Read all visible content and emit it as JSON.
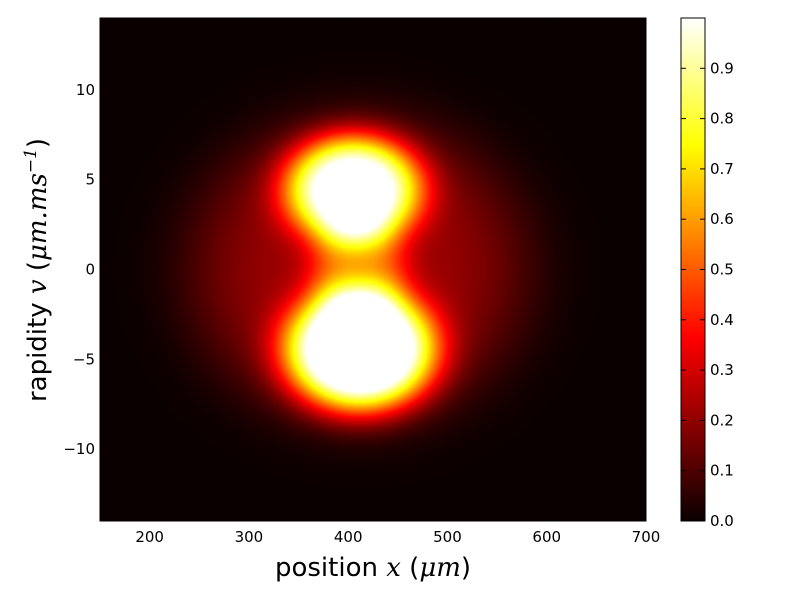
{
  "chart_data": {
    "type": "heatmap",
    "title": "",
    "xlabel": {
      "prefix": "position ",
      "var": "x",
      "unit_open": " (",
      "unit": "μm",
      "unit_close": ")"
    },
    "ylabel": {
      "prefix": "rapidity ",
      "var": "v",
      "unit_open": " (",
      "unit": "μm.ms",
      "exponent": "−1",
      "unit_close": ")"
    },
    "xlim": [
      150,
      700
    ],
    "ylim": [
      -14,
      14
    ],
    "x_ticks": [
      200,
      300,
      400,
      500,
      600,
      700
    ],
    "x_tick_labels": [
      "200",
      "300",
      "400",
      "500",
      "600",
      "700"
    ],
    "y_ticks": [
      -10,
      -5,
      0,
      5,
      10
    ],
    "y_tick_labels": [
      "−10",
      "−5",
      "0",
      "5",
      "10"
    ],
    "colormap": "hot",
    "colorbar": {
      "range": [
        0.0,
        1.0
      ],
      "ticks": [
        0.0,
        0.1,
        0.2,
        0.3,
        0.4,
        0.5,
        0.6,
        0.7,
        0.8,
        0.9
      ],
      "tick_labels": [
        "0.0",
        "0.1",
        "0.2",
        "0.3",
        "0.4",
        "0.5",
        "0.6",
        "0.7",
        "0.8",
        "0.9"
      ]
    },
    "grid": false,
    "density_components": [
      {
        "x": 412,
        "v": -4.5,
        "sx": 60,
        "sv": 2.7,
        "amp": 1.15
      },
      {
        "x": 405,
        "v": 4.5,
        "sx": 55,
        "sv": 2.4,
        "amp": 0.95
      },
      {
        "x": 410,
        "v": 0.0,
        "sx": 40,
        "sv": 2.5,
        "amp": 0.3
      }
    ],
    "halo": {
      "x": 410,
      "v": 0.0,
      "sx": 145,
      "sv": 7.2,
      "amp": 0.22
    }
  }
}
